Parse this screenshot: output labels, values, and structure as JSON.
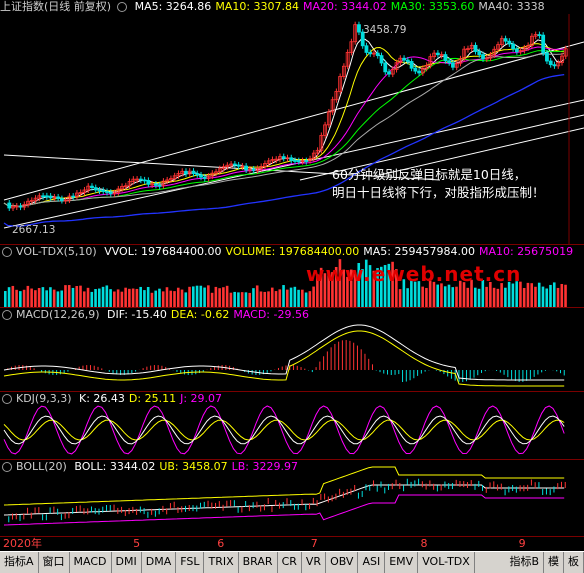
{
  "main": {
    "title": "上证指数(日线 前复权)",
    "ma": [
      {
        "label": "MA5: 3264.86",
        "color": "#ffffff"
      },
      {
        "label": "MA10: 3307.84",
        "color": "#ffff00"
      },
      {
        "label": "MA20: 3344.02",
        "color": "#ff00ff"
      },
      {
        "label": "MA30: 3353.60",
        "color": "#00ff00"
      },
      {
        "label": "MA40: 3338",
        "color": "#cccccc"
      }
    ],
    "high_label": "3458.79",
    "low_label": "2667.13",
    "annotation_line1": "60分钟级别反弹目标就是10日线，",
    "annotation_line2": "明日十日线将下行，对股指形成压制！"
  },
  "vol": {
    "title": "VOL-TDX(5,10)",
    "items": [
      {
        "label": "VVOL: 197684400.00",
        "color": "#ffffff"
      },
      {
        "label": "VOLUME: 197684400.00",
        "color": "#ffff00"
      },
      {
        "label": "MA5: 259457984.00",
        "color": "#ffffff"
      },
      {
        "label": "MA10: 25675019",
        "color": "#ff00ff"
      }
    ]
  },
  "watermark": "www.eweb.net.cn",
  "macd": {
    "title": "MACD(12,26,9)",
    "items": [
      {
        "label": "DIF: -15.40",
        "color": "#ffffff"
      },
      {
        "label": "DEA: -0.62",
        "color": "#ffff00"
      },
      {
        "label": "MACD: -29.56",
        "color": "#ff00ff"
      }
    ]
  },
  "kdj": {
    "title": "KDJ(9,3,3)",
    "items": [
      {
        "label": "K: 26.43",
        "color": "#ffffff"
      },
      {
        "label": "D: 25.11",
        "color": "#ffff00"
      },
      {
        "label": "J: 29.07",
        "color": "#ff00ff"
      }
    ]
  },
  "boll": {
    "title": "BOLL(20)",
    "items": [
      {
        "label": "BOLL: 3344.02",
        "color": "#ffffff"
      },
      {
        "label": "UB: 3458.07",
        "color": "#ffff00"
      },
      {
        "label": "LB: 3229.97",
        "color": "#ff00ff"
      }
    ]
  },
  "xaxis": {
    "year": "2020年",
    "months": [
      {
        "label": "5",
        "pos": 0.228
      },
      {
        "label": "6",
        "pos": 0.372
      },
      {
        "label": "7",
        "pos": 0.532
      },
      {
        "label": "8",
        "pos": 0.72
      },
      {
        "label": "9",
        "pos": 0.888
      }
    ]
  },
  "tabs": [
    "指标A",
    "窗口",
    "MACD",
    "DMI",
    "DMA",
    "FSL",
    "TRIX",
    "BRAR",
    "CR",
    "VR",
    "OBV",
    "ASI",
    "EMV",
    "VOL-TDX"
  ],
  "tabs_right": [
    "指标B",
    "模",
    "板"
  ]
}
